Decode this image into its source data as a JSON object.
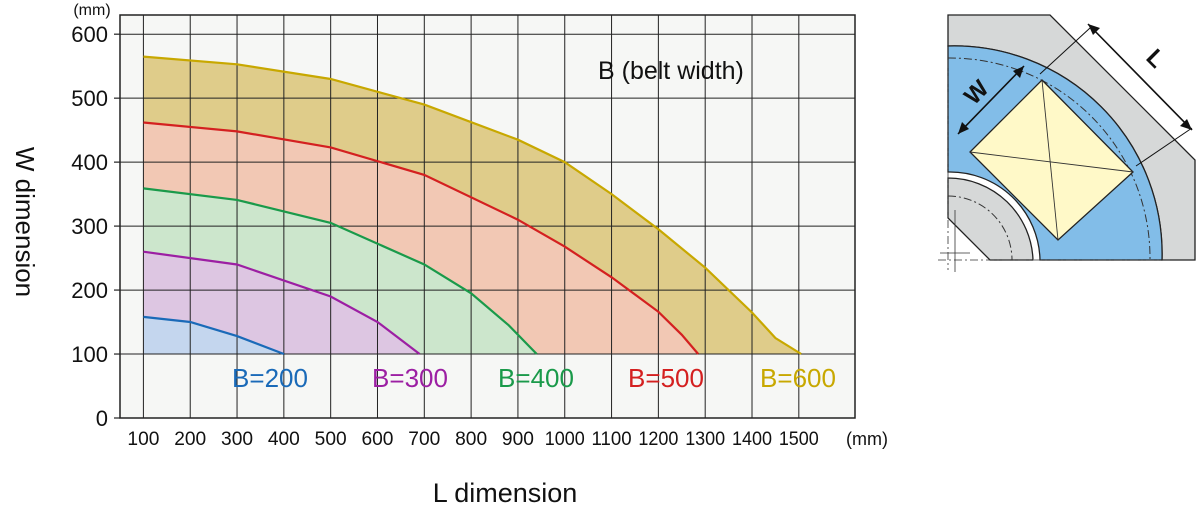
{
  "chart_data": {
    "type": "area",
    "xlabel": "L dimension",
    "ylabel": "W dimension",
    "x_unit": "(mm)",
    "y_unit": "(mm)",
    "xlim": [
      50,
      1620
    ],
    "ylim": [
      0,
      630
    ],
    "x_ticks": [
      100,
      200,
      300,
      400,
      500,
      600,
      700,
      800,
      900,
      1000,
      1100,
      1200,
      1300,
      1400,
      1500
    ],
    "x_tick_labels": [
      "100",
      "200",
      "300",
      "400",
      "500",
      "600",
      "700",
      "800",
      "900",
      "1000",
      "1100",
      "1200",
      "1300",
      "1400",
      "1500"
    ],
    "y_ticks": [
      0,
      100,
      200,
      300,
      400,
      500,
      600
    ],
    "y_tick_labels": [
      "0",
      "100",
      "200",
      "300",
      "400",
      "500",
      "600"
    ],
    "grid": true,
    "legend_title": "B (belt width)",
    "series": [
      {
        "name": "B=600",
        "color": "#c8a800",
        "fill": "#dfcc8a",
        "points": [
          [
            100,
            565
          ],
          [
            300,
            553
          ],
          [
            500,
            530
          ],
          [
            700,
            490
          ],
          [
            900,
            435
          ],
          [
            1000,
            400
          ],
          [
            1100,
            350
          ],
          [
            1200,
            295
          ],
          [
            1300,
            235
          ],
          [
            1400,
            165
          ],
          [
            1450,
            125
          ],
          [
            1505,
            100
          ]
        ]
      },
      {
        "name": "B=500",
        "color": "#d42020",
        "fill": "#f2c8b4",
        "points": [
          [
            100,
            462
          ],
          [
            300,
            448
          ],
          [
            500,
            423
          ],
          [
            700,
            380
          ],
          [
            900,
            310
          ],
          [
            1000,
            268
          ],
          [
            1100,
            220
          ],
          [
            1200,
            166
          ],
          [
            1250,
            130
          ],
          [
            1285,
            100
          ]
        ]
      },
      {
        "name": "B=400",
        "color": "#1a9a4a",
        "fill": "#cce6cc",
        "points": [
          [
            100,
            359
          ],
          [
            300,
            341
          ],
          [
            500,
            305
          ],
          [
            700,
            240
          ],
          [
            800,
            195
          ],
          [
            880,
            145
          ],
          [
            940,
            100
          ]
        ]
      },
      {
        "name": "B=300",
        "color": "#9c1fa3",
        "fill": "#ddc6e2",
        "points": [
          [
            100,
            260
          ],
          [
            300,
            240
          ],
          [
            500,
            190
          ],
          [
            600,
            150
          ],
          [
            690,
            100
          ]
        ]
      },
      {
        "name": "B=200",
        "color": "#1a6ab8",
        "fill": "#c4d6ee",
        "points": [
          [
            100,
            158
          ],
          [
            200,
            150
          ],
          [
            300,
            128
          ],
          [
            400,
            100
          ]
        ]
      }
    ]
  }
}
